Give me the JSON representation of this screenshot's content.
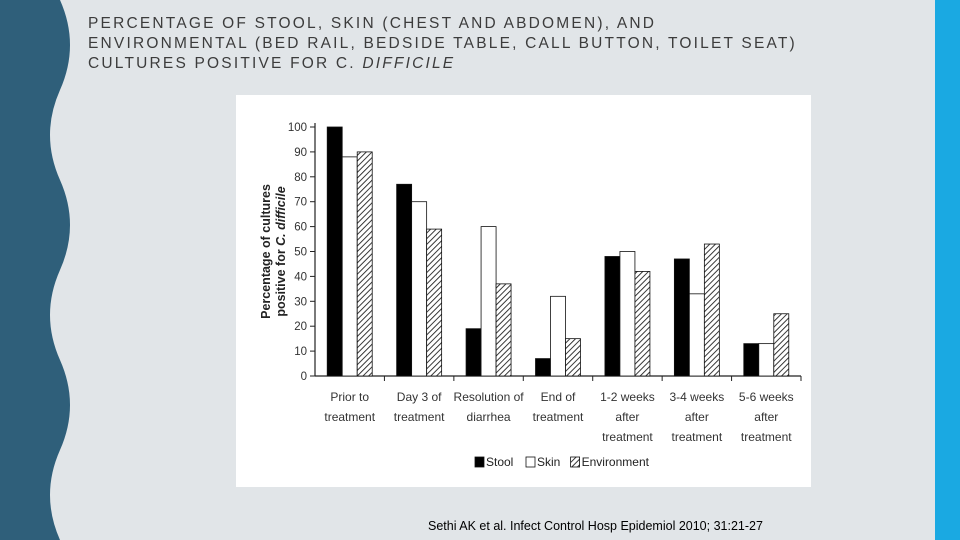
{
  "slide": {
    "title_line1": "PERCENTAGE OF STOOL, SKIN (CHEST AND ABDOMEN), AND",
    "title_line2": "ENVIRONMENTAL (BED RAIL, BEDSIDE TABLE, CALL BUTTON, TOILET SEAT)",
    "title_line3_prefix": "CULTURES POSITIVE FOR  C. ",
    "title_line3_italic": "DIFFICILE",
    "citation": "Sethi AK et al. Infect Control Hosp Epidemiol 2010; 31:21-27"
  },
  "colors": {
    "background": "#e1e5e8",
    "left_band": "#2f5f7a",
    "right_band": "#1aa9e2",
    "stool": "#000000",
    "skin": "#ffffff",
    "environment_pattern": "hatched"
  },
  "chart_data": {
    "type": "bar",
    "ylabel_line1": "Percentage of cultures",
    "ylabel_line2_prefix": "positive for ",
    "ylabel_line2_italic": "C. difficile",
    "ylim": [
      0,
      100
    ],
    "yticks": [
      "0",
      "10",
      "20",
      "30",
      "40",
      "50",
      "60",
      "70",
      "80",
      "90",
      "100"
    ],
    "categories": [
      [
        "Prior to",
        "treatment"
      ],
      [
        "Day 3 of",
        "treatment"
      ],
      [
        "Resolution of",
        "diarrhea"
      ],
      [
        "End of",
        "treatment"
      ],
      [
        "1-2 weeks",
        "after",
        "treatment"
      ],
      [
        "3-4 weeks",
        "after",
        "treatment"
      ],
      [
        "5-6 weeks",
        "after",
        "treatment"
      ]
    ],
    "series": [
      {
        "name": "Stool",
        "values": [
          100,
          77,
          19,
          7,
          48,
          47,
          13
        ]
      },
      {
        "name": "Skin",
        "values": [
          88,
          70,
          60,
          32,
          50,
          33,
          13
        ]
      },
      {
        "name": "Environment",
        "values": [
          90,
          59,
          37,
          15,
          42,
          53,
          25
        ]
      }
    ],
    "legend": "bottom",
    "grid": false
  }
}
